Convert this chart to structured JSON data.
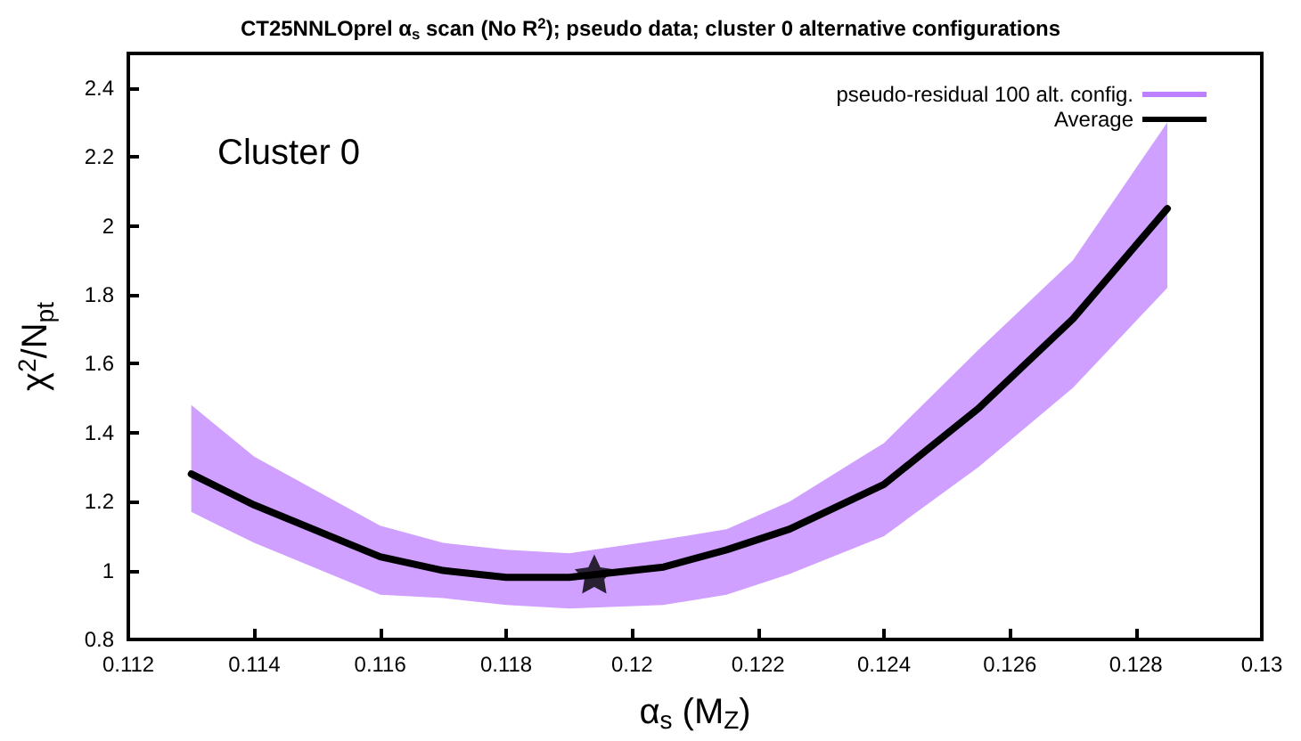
{
  "chart_data": {
    "type": "line",
    "title": "CT25NNLOprel α$_{s}$ scan (No R$^{2}$); pseudo data; cluster 0 alternative configurations",
    "xlabel": "α$_{s}$ (M$_{Z}$)",
    "ylabel": "χ$^{2}$/N$_{pt}$",
    "annotations": [
      "Cluster 0"
    ],
    "x": [
      0.113,
      0.114,
      0.116,
      0.117,
      0.118,
      0.119,
      0.1205,
      0.1215,
      0.1225,
      0.124,
      0.1255,
      0.127,
      0.1285
    ],
    "series": [
      {
        "name": "pseudo-residual 100 alt. config.",
        "color": "#bf80ff",
        "values": [
          null,
          null,
          null,
          null,
          null,
          null,
          null,
          null,
          null,
          null,
          null,
          null,
          null
        ],
        "lower": [
          1.17,
          1.08,
          0.93,
          0.92,
          0.9,
          0.89,
          0.9,
          0.93,
          0.99,
          1.1,
          1.3,
          1.53,
          1.82
        ],
        "upper": [
          1.48,
          1.33,
          1.13,
          1.08,
          1.06,
          1.05,
          1.09,
          1.12,
          1.2,
          1.37,
          1.64,
          1.9,
          2.3
        ]
      },
      {
        "name": "Average",
        "color": "#000000",
        "values": [
          1.28,
          1.19,
          1.04,
          1.0,
          0.98,
          0.98,
          1.01,
          1.06,
          1.12,
          1.25,
          1.47,
          1.73,
          2.05
        ]
      },
      {
        "type": "scatter",
        "marker": "star",
        "color": "#000000",
        "x": [
          0.1194
        ],
        "values": [
          0.99
        ]
      }
    ],
    "xlim": [
      0.112,
      0.13
    ],
    "xticks": [
      0.112,
      0.114,
      0.116,
      0.118,
      0.12,
      0.122,
      0.124,
      0.126,
      0.128,
      0.13
    ],
    "ylim": [
      0.8,
      2.5
    ],
    "yticks": [
      0.8,
      1,
      1.2,
      1.4,
      1.6,
      1.8,
      2,
      2.2,
      2.4
    ],
    "legend": "top right",
    "grid": false,
    "marker": "none",
    "line_style": "solid"
  }
}
